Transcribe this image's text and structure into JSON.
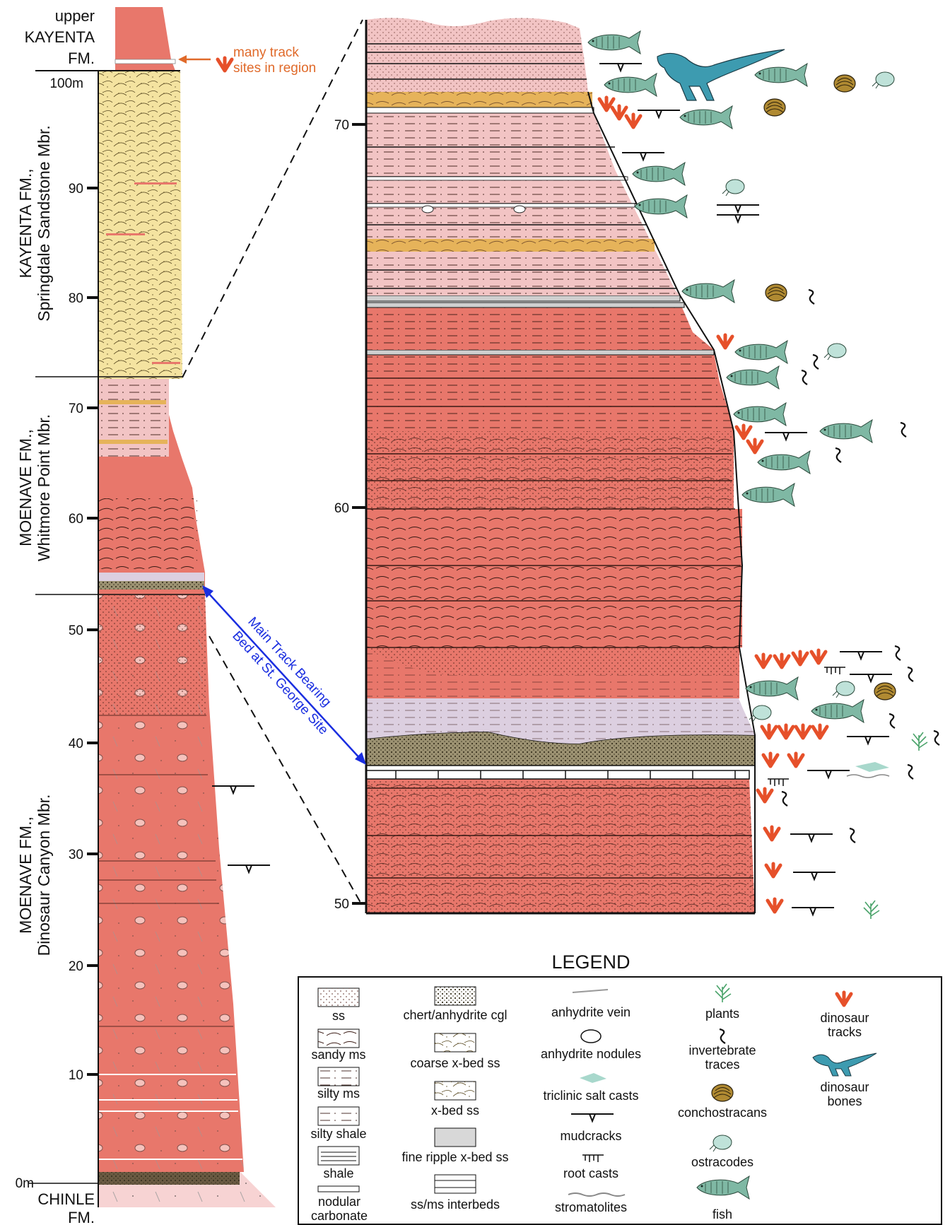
{
  "formations": {
    "upper_kayenta": [
      "upper",
      "KAYENTA",
      "FM."
    ],
    "springdale": [
      "KAYENTA FM.,",
      "Springdale Sandstone Mbr."
    ],
    "whitmore": [
      "MOENAVE FM.,",
      "Whitmore Point Mbr."
    ],
    "dinosaur_canyon": [
      "MOENAVE FM.,",
      "Dinosaur Canyon Mbr."
    ],
    "chinle": [
      "CHINLE",
      "FM."
    ]
  },
  "left_axis": {
    "top_label": "100m",
    "ticks": [
      "90",
      "80",
      "70",
      "60",
      "50",
      "40",
      "30",
      "20",
      "10"
    ],
    "bottom_label": "0m"
  },
  "right_axis": {
    "ticks": [
      "70",
      "60",
      "50"
    ]
  },
  "annotations": {
    "track_sites": [
      "many track",
      "sites in region"
    ],
    "main_track": [
      "Main Track Bearing",
      "Bed at St. George Site"
    ]
  },
  "colors": {
    "red": "#e8776b",
    "pink": "#f2c4c4",
    "lavender": "#dccfe0",
    "yellow": "#f4e3a0",
    "olive": "#9c9272",
    "ochre": "#e6b35a",
    "track": "#e6502a",
    "fish": "#7fb8a4",
    "annot_orange": "#e06a2a",
    "annot_blue": "#1a2ee0"
  },
  "legend": {
    "title": "LEGEND",
    "col1": [
      "ss",
      "sandy ms",
      "silty ms",
      "silty shale",
      "shale",
      "nodular carbonate"
    ],
    "col2": [
      "chert/anhydrite cgl",
      "coarse x-bed ss",
      "x-bed ss",
      "fine ripple x-bed ss",
      "ss/ms interbeds"
    ],
    "col3": [
      "anhydrite vein",
      "anhydrite nodules",
      "triclinic salt casts",
      "mudcracks",
      "root casts",
      "stromatolites"
    ],
    "col4": [
      "plants",
      "invertebrate traces",
      "conchostracans",
      "ostracodes",
      "fish"
    ],
    "col5": [
      "dinosaur tracks",
      "dinosaur bones"
    ],
    "icons": {
      "col3": [
        "anhydrite-vein-icon",
        "anhydrite-nodule-icon",
        "salt-cast-icon",
        "mudcrack-icon",
        "root-cast-icon",
        "stromatolite-icon"
      ],
      "col4": [
        "plant-icon",
        "invertebrate-trace-icon",
        "conchostracan-icon",
        "ostracode-icon",
        "fish-icon"
      ],
      "col5": [
        "dinosaur-track-icon",
        "dinosaur-bone-icon"
      ]
    }
  }
}
